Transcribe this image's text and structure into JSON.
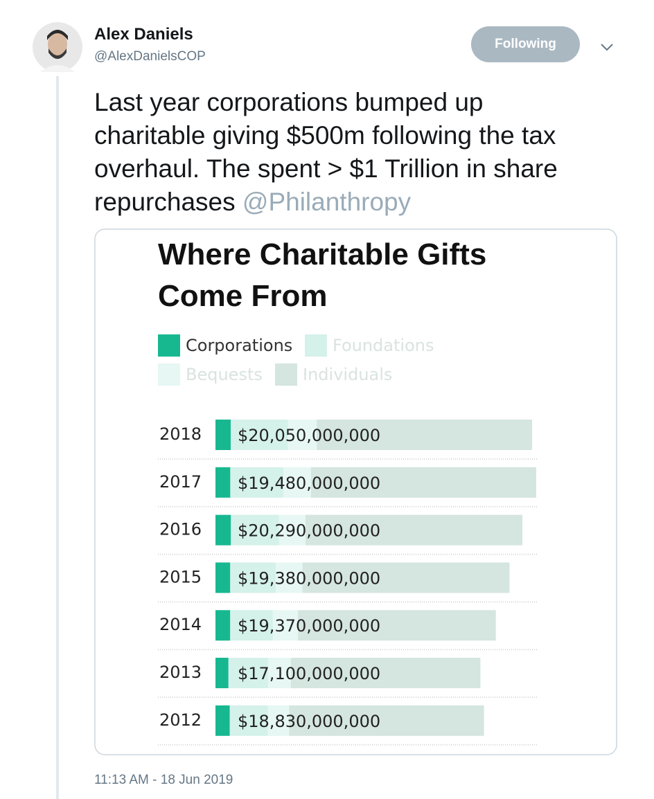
{
  "tweet": {
    "name": "Alex Daniels",
    "handle": "@AlexDanielsCOP",
    "follow_button": "Following",
    "text": "Last year corporations bumped up charitable giving $500m following the tax overhaul. The spent > $1 Trillion in share repurchases",
    "mention": "@Philanthropy",
    "timestamp": "11:13 AM - 18 Jun 2019"
  },
  "chart_data": {
    "type": "stacked-bar-horizontal",
    "title": "Where Charitable Gifts Come From",
    "categories": [
      "2018",
      "2017",
      "2016",
      "2015",
      "2014",
      "2013",
      "2012"
    ],
    "series": [
      {
        "name": "Corporations",
        "color": "#17b890",
        "values": [
          20050000000,
          19480000000,
          20290000000,
          19380000000,
          19370000000,
          17100000000,
          18830000000
        ],
        "value_labels": [
          "$20,050,000,000",
          "$19,480,000,000",
          "$20,290,000,000",
          "$19,380,000,000",
          "$19,370,000,000",
          "$17,100,000,000",
          "$18,830,000,000"
        ]
      },
      {
        "name": "Foundations",
        "color": "#d4f1ea",
        "values": [
          75000000000,
          70000000000,
          63000000000,
          60000000000,
          56000000000,
          52000000000,
          50000000000
        ]
      },
      {
        "name": "Bequests",
        "color": "#e6f7f4",
        "values": [
          38000000000,
          36000000000,
          35000000000,
          35000000000,
          33000000000,
          30000000000,
          28000000000
        ]
      },
      {
        "name": "Individuals",
        "color": "#d5e5e0",
        "values": [
          283000000000,
          296000000000,
          285000000000,
          272000000000,
          260000000000,
          249000000000,
          256000000000
        ]
      }
    ]
  }
}
